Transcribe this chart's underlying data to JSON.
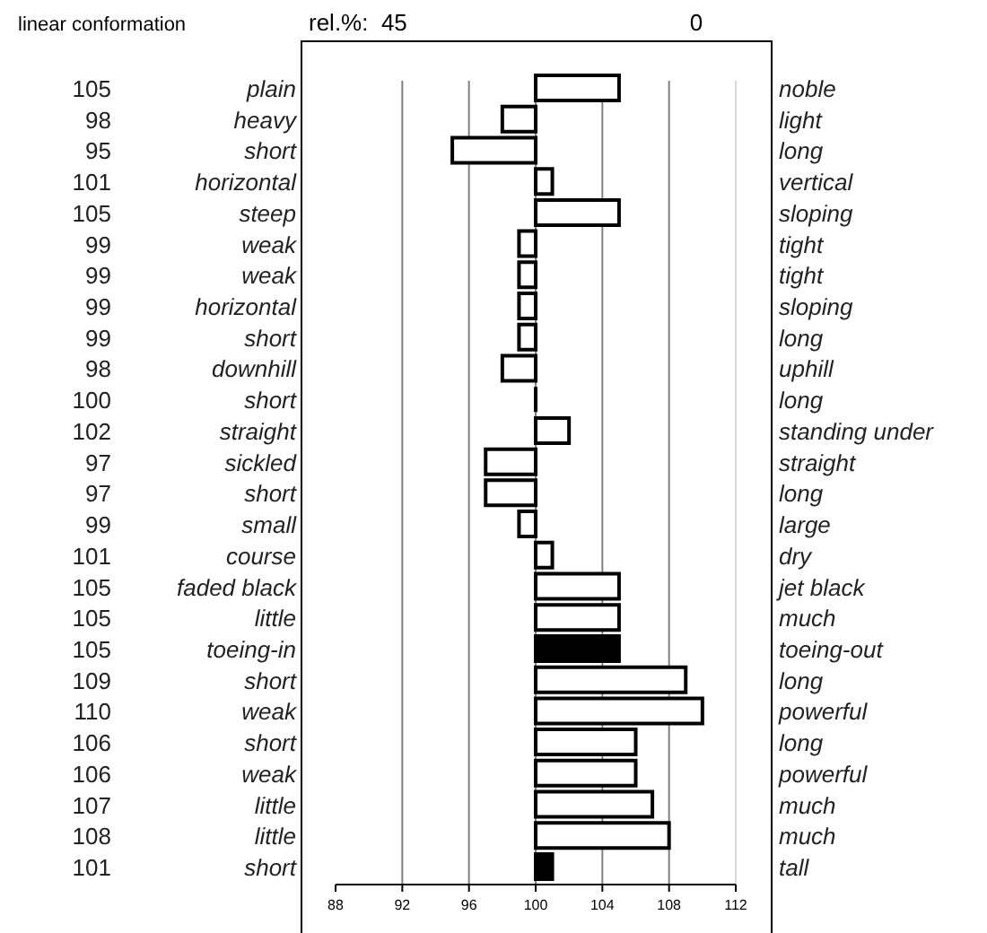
{
  "chart_data": {
    "type": "bar",
    "orientation": "horizontal",
    "title": "linear conformation",
    "annotations": [
      "rel.%:  45",
      "0"
    ],
    "categories": [
      "plain",
      "heavy",
      "short",
      "horizontal",
      "steep",
      "weak",
      "weak",
      "horizontal",
      "short",
      "downhill",
      "short",
      "straight",
      "sickled",
      "short",
      "small",
      "course",
      "faded black",
      "little",
      "toeing-in",
      "short",
      "weak",
      "short",
      "weak",
      "little",
      "little",
      "short"
    ],
    "y2_categories": [
      "noble",
      "light",
      "long",
      "vertical",
      "sloping",
      "tight",
      "tight",
      "sloping",
      "long",
      "uphill",
      "long",
      "standing under",
      "straight",
      "long",
      "large",
      "dry",
      "jet black",
      "much",
      "toeing-out",
      "long",
      "powerful",
      "long",
      "powerful",
      "much",
      "much",
      "tall"
    ],
    "values": [
      5,
      -2,
      -5,
      1,
      5,
      -1,
      -1,
      -1,
      -1,
      -2,
      0,
      2,
      -3,
      -3,
      -1,
      1,
      5,
      5,
      5,
      9,
      10,
      6,
      6,
      7,
      8,
      1
    ],
    "base": [
      100,
      100,
      100,
      100,
      100,
      100,
      100,
      100,
      100,
      100,
      100,
      100,
      100,
      100,
      100,
      100,
      100,
      100,
      100,
      100,
      100,
      100,
      100,
      100,
      100,
      100
    ],
    "value_labels": [
      "105",
      "98",
      "95",
      "101",
      "105",
      "99",
      "99",
      "99",
      "99",
      "98",
      "100",
      "102",
      "97",
      "97",
      "99",
      "101",
      "105",
      "105",
      "105",
      "109",
      "110",
      "106",
      "106",
      "107",
      "108",
      "101"
    ],
    "colors": [
      "#ffffff",
      "#ffffff",
      "#ffffff",
      "#ffffff",
      "#ffffff",
      "#ffffff",
      "#ffffff",
      "#ffffff",
      "#ffffff",
      "#ffffff",
      "#000000",
      "#ffffff",
      "#ffffff",
      "#ffffff",
      "#ffffff",
      "#ffffff",
      "#ffffff",
      "#ffffff",
      "#000000",
      "#ffffff",
      "#ffffff",
      "#ffffff",
      "#ffffff",
      "#ffffff",
      "#ffffff",
      "#000000"
    ],
    "xlim": [
      88,
      112
    ],
    "xticks": [
      88,
      92,
      96,
      100,
      104,
      108,
      112
    ],
    "grid": "x"
  }
}
